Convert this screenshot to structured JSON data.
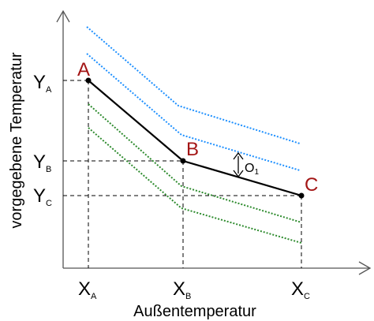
{
  "axes": {
    "y_label": "vorgegebene Temperatur",
    "x_label": "Außentemperatur"
  },
  "x_ticks": [
    {
      "main": "X",
      "sub": "A"
    },
    {
      "main": "X",
      "sub": "B"
    },
    {
      "main": "X",
      "sub": "C"
    }
  ],
  "y_ticks": [
    {
      "main": "Y",
      "sub": "A"
    },
    {
      "main": "Y",
      "sub": "B"
    },
    {
      "main": "Y",
      "sub": "C"
    }
  ],
  "points": [
    {
      "label": "A"
    },
    {
      "label": "B"
    },
    {
      "label": "C"
    }
  ],
  "offset": {
    "main": "O",
    "sub": "1"
  },
  "colors": {
    "curve": "#000000",
    "point_labels": "#a31515",
    "upper_lines": "#1e90ff",
    "lower_lines": "#2e8b2e",
    "guides": "#000000"
  }
}
